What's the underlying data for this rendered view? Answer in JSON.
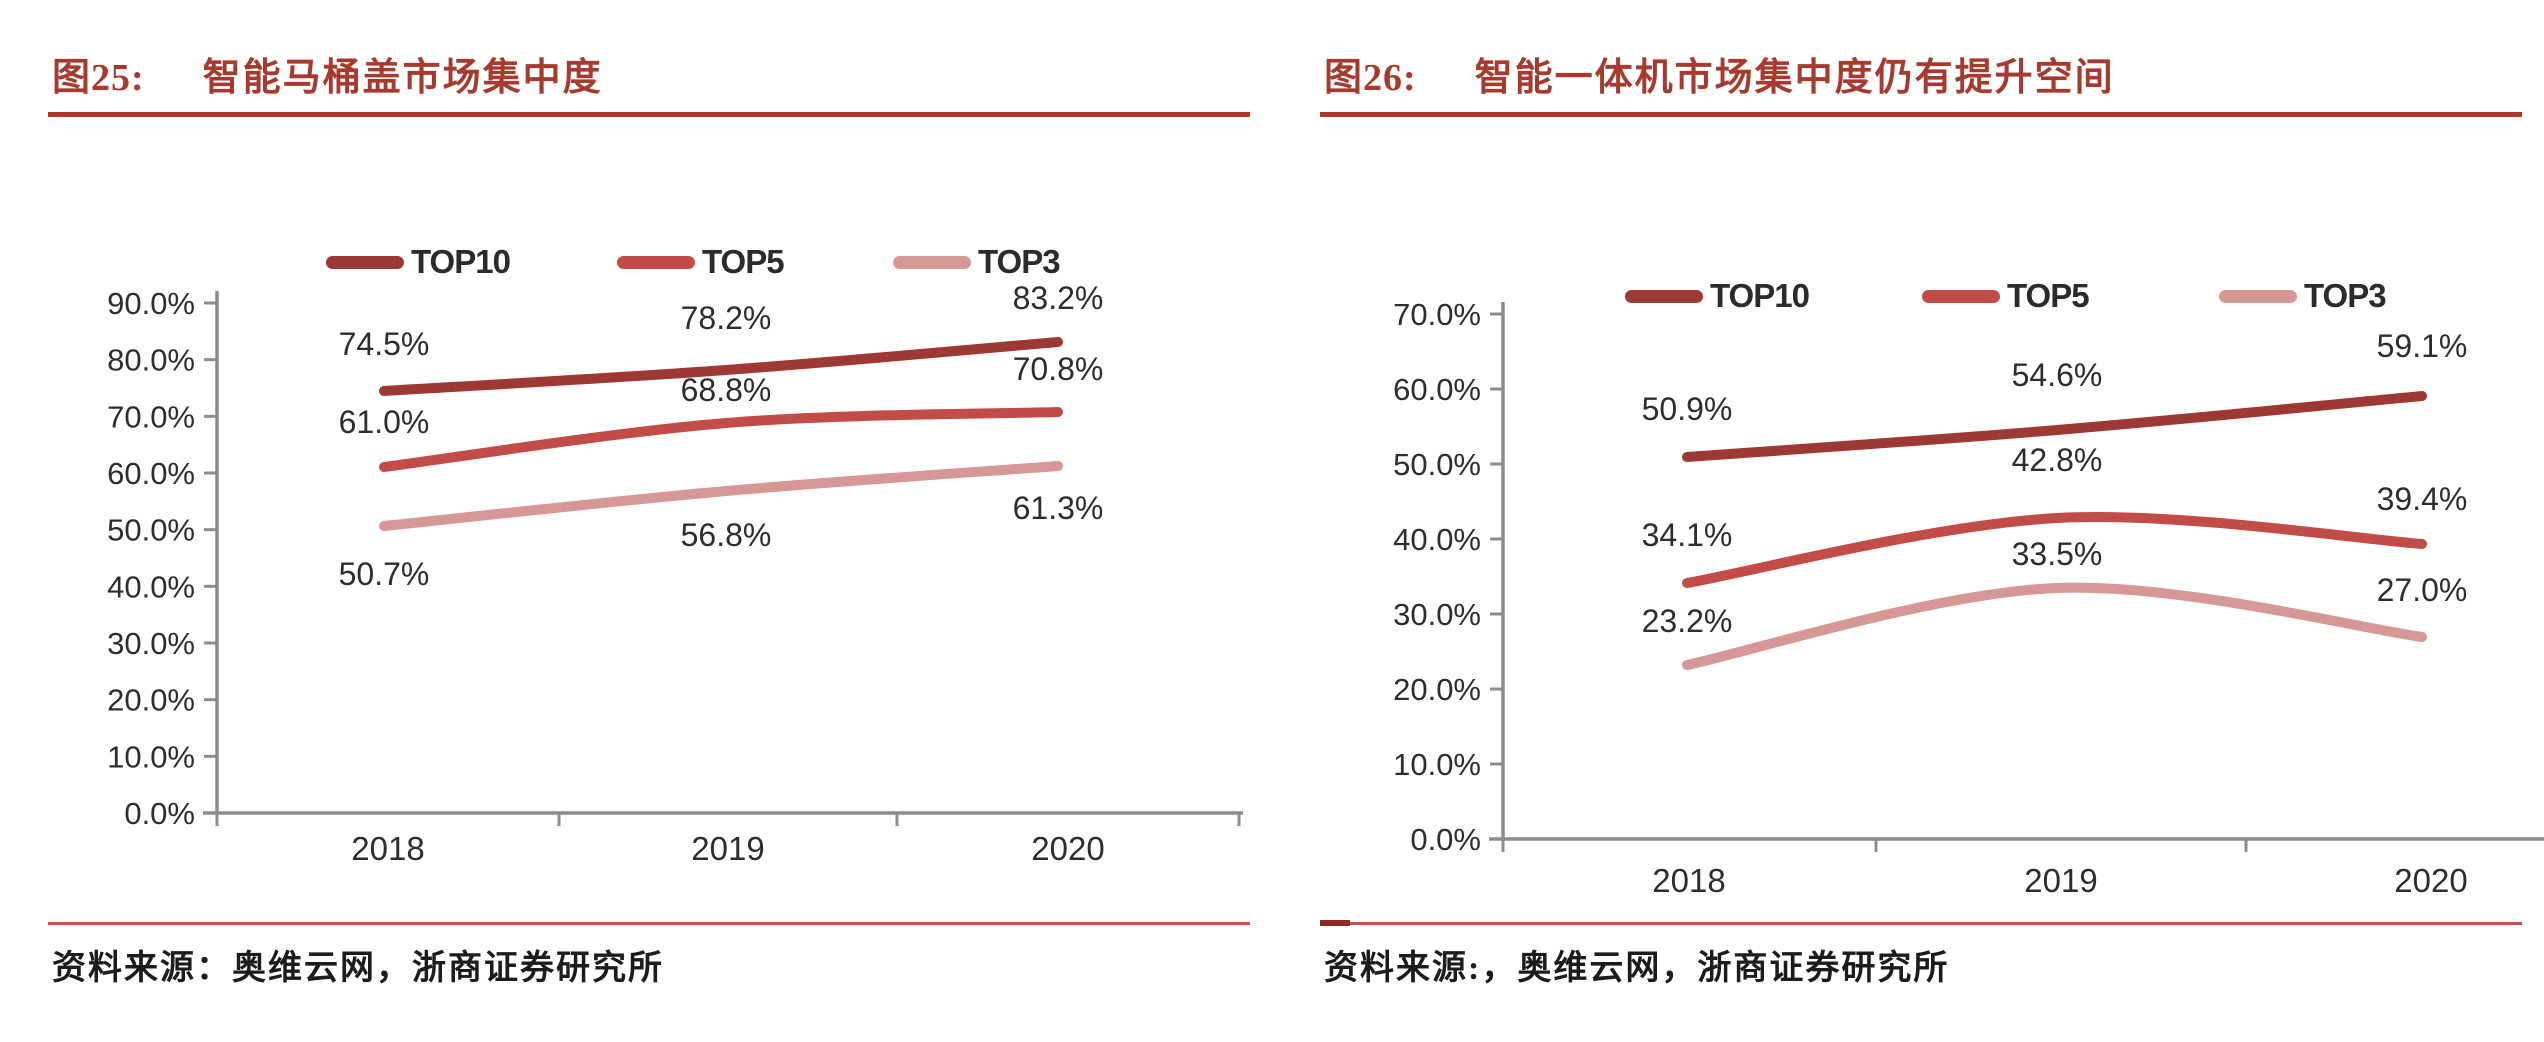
{
  "figures": [
    {
      "caption_number": "图25:",
      "title": "智能马桶盖市场集中度",
      "source": "资料来源：奥维云网，浙商证券研究所"
    },
    {
      "caption_number": "图26:",
      "title": "智能一体机市场集中度仍有提升空间",
      "source": "资料来源:，奥维云网，浙商证券研究所"
    }
  ],
  "chart_data": [
    {
      "type": "line",
      "title": "智能马桶盖市场集中度",
      "categories": [
        "2018",
        "2019",
        "2020"
      ],
      "series": [
        {
          "name": "TOP10",
          "color": "#9D3935",
          "values": [
            74.5,
            78.2,
            83.2
          ]
        },
        {
          "name": "TOP5",
          "color": "#C24C47",
          "values": [
            61.0,
            68.8,
            70.8
          ]
        },
        {
          "name": "TOP3",
          "color": "#D69896",
          "values": [
            50.7,
            56.8,
            61.3
          ]
        }
      ],
      "xlabel": "",
      "ylabel": "",
      "ylim": [
        0,
        90
      ],
      "yticks": [
        "0.0%",
        "10.0%",
        "20.0%",
        "30.0%",
        "40.0%",
        "50.0%",
        "60.0%",
        "70.0%",
        "80.0%",
        "90.0%"
      ],
      "legend_position": "top",
      "grid": false,
      "data_labels": [
        "74.5%",
        "78.2%",
        "83.2%",
        "61.0%",
        "68.8%",
        "70.8%",
        "50.7%",
        "56.8%",
        "61.3%"
      ]
    },
    {
      "type": "line",
      "title": "智能一体机市场集中度仍有提升空间",
      "categories": [
        "2018",
        "2019",
        "2020"
      ],
      "series": [
        {
          "name": "TOP10",
          "color": "#9D3935",
          "values": [
            50.9,
            54.6,
            59.1
          ]
        },
        {
          "name": "TOP5",
          "color": "#C24C47",
          "values": [
            34.1,
            42.8,
            39.4
          ]
        },
        {
          "name": "TOP3",
          "color": "#D69896",
          "values": [
            23.2,
            33.5,
            27.0
          ]
        }
      ],
      "xlabel": "",
      "ylabel": "",
      "ylim": [
        0,
        70
      ],
      "yticks": [
        "0.0%",
        "10.0%",
        "20.0%",
        "30.0%",
        "40.0%",
        "50.0%",
        "60.0%",
        "70.0%"
      ],
      "legend_position": "top",
      "grid": false,
      "data_labels": [
        "50.9%",
        "54.6%",
        "59.1%",
        "34.1%",
        "42.8%",
        "39.4%",
        "23.2%",
        "33.5%",
        "27.0%"
      ]
    }
  ],
  "palette": {
    "title_red": "#A63A2E",
    "rule_red": "#AE372D",
    "separator_red": "#C4534E",
    "separator_dash_red": "#8E2B25",
    "axis_gray": "#8C8C8C",
    "text_dark": "#2D2D2D"
  }
}
